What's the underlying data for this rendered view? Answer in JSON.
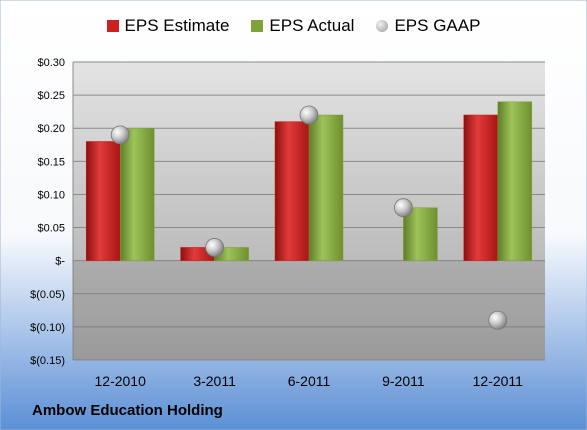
{
  "chart_data": {
    "type": "bar",
    "categories": [
      "12-2010",
      "3-2011",
      "6-2011",
      "9-2011",
      "12-2011"
    ],
    "series": [
      {
        "name": "EPS Estimate",
        "type": "bar",
        "color": "#cc1f1f",
        "values": [
          0.18,
          0.02,
          0.21,
          null,
          0.22
        ]
      },
      {
        "name": "EPS Actual",
        "type": "bar",
        "color": "#7fa23a",
        "values": [
          0.2,
          0.02,
          0.22,
          0.08,
          0.24
        ]
      },
      {
        "name": "EPS GAAP",
        "type": "scatter",
        "color": "#a9a9a9",
        "values": [
          0.19,
          0.02,
          0.22,
          0.08,
          -0.09
        ]
      }
    ],
    "ylim": [
      -0.15,
      0.3
    ],
    "yticks": [
      0.3,
      0.25,
      0.2,
      0.15,
      0.1,
      0.05,
      0,
      -0.05,
      -0.1,
      -0.15
    ],
    "ytick_labels": [
      "$0.30",
      "$0.25",
      "$0.20",
      "$0.15",
      "$0.10",
      "$0.05",
      "$-",
      "$(0.05)",
      "$(0.10)",
      "$(0.15)"
    ],
    "grid": true,
    "legend_position": "top"
  },
  "footer": {
    "company": "Ambow Education Holding"
  }
}
